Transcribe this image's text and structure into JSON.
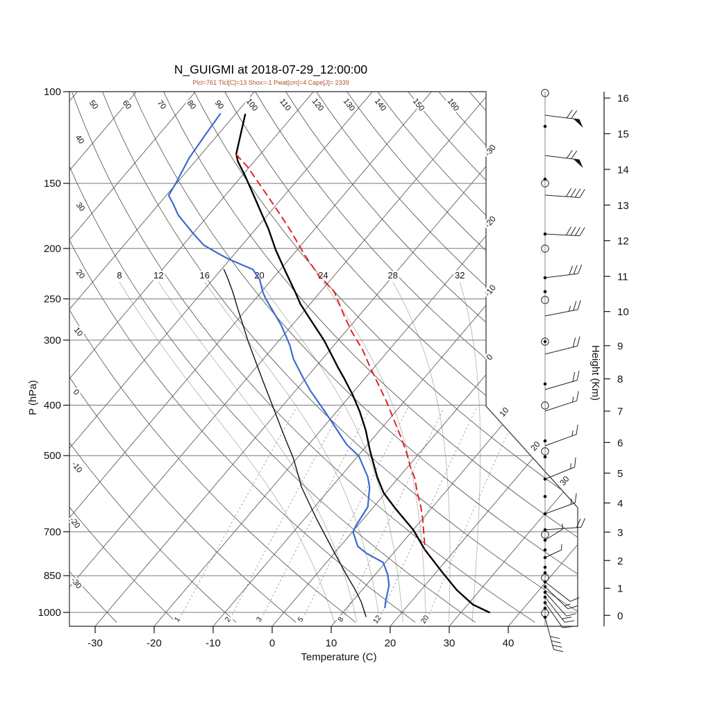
{
  "header": {
    "title": "N_GUIGMI at 2018-07-29_12:00:00",
    "subtitle": "Plcl=761 Tlcl[C]=13 Shox=-1 Pwat[cm]=4 Cape[J]= 2339"
  },
  "axes": {
    "pressure": {
      "title": "P (hPa)",
      "ticks": [
        100,
        150,
        200,
        250,
        300,
        400,
        500,
        700,
        850,
        1000
      ]
    },
    "temperature": {
      "title": "Temperature (C)",
      "ticks": [
        -30,
        -20,
        -10,
        0,
        10,
        20,
        30,
        40
      ]
    },
    "height": {
      "title": "Height (Km)",
      "ticks": [
        0,
        1,
        2,
        3,
        4,
        5,
        6,
        7,
        8,
        9,
        10,
        11,
        12,
        13,
        14,
        15,
        16
      ]
    }
  },
  "background_labels": {
    "dry_adiabats_top": [
      50,
      60,
      70,
      80,
      90,
      100,
      110,
      120,
      130,
      140,
      150,
      160
    ],
    "dry_adiabats_left": [
      40,
      30,
      20,
      10,
      0,
      -10,
      -20,
      -30
    ],
    "isotherm_edge": [
      -30,
      -20,
      -10,
      0,
      10,
      20,
      30
    ],
    "moist_adiabats": [
      8,
      12,
      16,
      20,
      24,
      28,
      32
    ],
    "mixing_ratio": [
      1,
      2,
      3,
      5,
      8,
      12,
      20
    ]
  },
  "colors": {
    "temperature": "#000000",
    "dewpoint": "#3c6ad2",
    "parcel": "#e32222",
    "aux": "#111111",
    "subtitle": "#a8552a",
    "grid_dark": "#4a4a4a",
    "grid_mid": "#787878",
    "grid_light": "#b7b7b7",
    "mixing": "#8a8a8a"
  },
  "chart_data": {
    "type": "line",
    "variant": "skew-t-log-p-sounding",
    "title": "N_GUIGMI at 2018-07-29_12:00:00",
    "xlabel": "Temperature (C)",
    "ylabel": "P (hPa)",
    "x_ticks": [
      -30,
      -20,
      -10,
      0,
      10,
      20,
      30,
      40
    ],
    "y_axis": {
      "scale": "log",
      "range": [
        100,
        1050
      ]
    },
    "series": [
      {
        "name": "temperature",
        "style": "solid",
        "points_p_t": [
          [
            110.6,
            -78.3
          ],
          [
            131.8,
            -74.1
          ],
          [
            136.3,
            -72.7
          ],
          [
            145,
            -69.5
          ],
          [
            157.5,
            -65.4
          ],
          [
            171.2,
            -61.3
          ],
          [
            183.7,
            -57.8
          ],
          [
            201.4,
            -53.6
          ],
          [
            220.4,
            -49.1
          ],
          [
            242.7,
            -44.2
          ],
          [
            255.9,
            -41.6
          ],
          [
            276.3,
            -37.2
          ],
          [
            300.3,
            -32.4
          ],
          [
            319.2,
            -29.2
          ],
          [
            338.7,
            -26.1
          ],
          [
            355.4,
            -23.5
          ],
          [
            381.4,
            -19.8
          ],
          [
            411.4,
            -16.1
          ],
          [
            446.7,
            -12.4
          ],
          [
            490.5,
            -8.6
          ],
          [
            549.5,
            -3.7
          ],
          [
            589.8,
            -0.3
          ],
          [
            631.6,
            3.9
          ],
          [
            694,
            10.0
          ],
          [
            758.6,
            14.9
          ],
          [
            839.5,
            21.2
          ],
          [
            906.4,
            26.1
          ],
          [
            966.1,
            30.9
          ],
          [
            1000,
            34.8
          ]
        ]
      },
      {
        "name": "dewpoint",
        "style": "solid",
        "points_p_t": [
          [
            110.3,
            -82.6
          ],
          [
            121.3,
            -82.1
          ],
          [
            134.2,
            -81.5
          ],
          [
            150.4,
            -80.1
          ],
          [
            158.2,
            -79.6
          ],
          [
            164.9,
            -77.4
          ],
          [
            172.4,
            -75.2
          ],
          [
            186.5,
            -70.2
          ],
          [
            197.1,
            -66.5
          ],
          [
            205.8,
            -62.2
          ],
          [
            209.6,
            -60.3
          ],
          [
            216.1,
            -56.6
          ],
          [
            219.4,
            -54.7
          ],
          [
            229.8,
            -52.0
          ],
          [
            242.7,
            -49.7
          ],
          [
            249.7,
            -48.3
          ],
          [
            280.5,
            -41.9
          ],
          [
            306.8,
            -37.5
          ],
          [
            326.1,
            -34.9
          ],
          [
            355.4,
            -30.4
          ],
          [
            375.6,
            -27.4
          ],
          [
            411.4,
            -22.0
          ],
          [
            444.6,
            -17.5
          ],
          [
            475.7,
            -13.6
          ],
          [
            501.2,
            -9.8
          ],
          [
            549.5,
            -5.3
          ],
          [
            575.4,
            -3.5
          ],
          [
            627.2,
            -1.0
          ],
          [
            681.3,
            -0.3
          ],
          [
            700.4,
            0.1
          ],
          [
            746.8,
            3.0
          ],
          [
            770.4,
            5.5
          ],
          [
            801.7,
            9.6
          ],
          [
            845.3,
            12.1
          ],
          [
            887.2,
            13.9
          ],
          [
            912.7,
            14.6
          ],
          [
            955,
            15.7
          ],
          [
            978.7,
            16.4
          ]
        ]
      },
      {
        "name": "parcel",
        "style": "dashed",
        "points_p_t": [
          [
            132.1,
            -74.0
          ],
          [
            139.3,
            -70.4
          ],
          [
            154.2,
            -64.4
          ],
          [
            169.1,
            -59.0
          ],
          [
            185.4,
            -53.7
          ],
          [
            205.8,
            -48.0
          ],
          [
            225.6,
            -42.6
          ],
          [
            242.1,
            -37.7
          ],
          [
            267.9,
            -32.8
          ],
          [
            289.3,
            -28.9
          ],
          [
            312.5,
            -24.6
          ],
          [
            336.3,
            -21.0
          ],
          [
            363.1,
            -17.1
          ],
          [
            392.0,
            -13.2
          ],
          [
            423.3,
            -9.5
          ],
          [
            457.1,
            -5.8
          ],
          [
            490.5,
            -2.5
          ],
          [
            524.8,
            0.4
          ],
          [
            553.3,
            2.9
          ],
          [
            589.8,
            5.4
          ],
          [
            627.2,
            8.0
          ],
          [
            660.7,
            10.0
          ],
          [
            756.2,
            14.8
          ]
        ]
      },
      {
        "name": "wet-bulb-aux",
        "style": "solid",
        "points_p_t": [
          [
            219.4,
            -59.6
          ],
          [
            225.6,
            -58.2
          ],
          [
            242.1,
            -54.9
          ],
          [
            261.5,
            -51.5
          ],
          [
            301.7,
            -45.1
          ],
          [
            357.1,
            -37.2
          ],
          [
            399.3,
            -31.9
          ],
          [
            457.1,
            -25.5
          ],
          [
            507,
            -20.5
          ],
          [
            575.4,
            -15.0
          ],
          [
            660.7,
            -8.0
          ],
          [
            758.6,
            -0.7
          ],
          [
            839.5,
            4.7
          ],
          [
            906.4,
            8.9
          ],
          [
            955,
            11.6
          ],
          [
            1018.6,
            14.5
          ]
        ]
      }
    ],
    "wind_barbs": [
      {
        "y": 134,
        "marker": "circle"
      },
      {
        "y": 166,
        "barb": {
          "angle": -7,
          "flags": 1,
          "full": 2,
          "half": 0,
          "len": 50
        }
      },
      {
        "y": 182,
        "marker": "dot"
      },
      {
        "y": 224,
        "barb": {
          "angle": -7,
          "flags": 1,
          "full": 2,
          "half": 0,
          "len": 50
        }
      },
      {
        "y": 258,
        "marker": "dot"
      },
      {
        "y": 264,
        "marker": "circle"
      },
      {
        "y": 281,
        "barb": {
          "angle": -4,
          "flags": 0,
          "full": 4,
          "half": 0,
          "len": 50
        }
      },
      {
        "y": 337,
        "marker": "dot",
        "barb": {
          "angle": -3,
          "flags": 0,
          "full": 4,
          "half": 0,
          "len": 50
        }
      },
      {
        "y": 358,
        "marker": "circle"
      },
      {
        "y": 400,
        "marker": "dot",
        "barb": {
          "angle": 7,
          "flags": 0,
          "full": 3,
          "half": 0,
          "len": 48
        }
      },
      {
        "y": 420,
        "marker": "dot"
      },
      {
        "y": 432,
        "marker": "circle"
      },
      {
        "y": 455,
        "barb": {
          "angle": 11,
          "flags": 0,
          "full": 2,
          "half": 1,
          "len": 48
        }
      },
      {
        "y": 492,
        "marker": "circle-dot"
      },
      {
        "y": 510,
        "barb": {
          "angle": 14,
          "flags": 0,
          "full": 2,
          "half": 0,
          "len": 48
        }
      },
      {
        "y": 553,
        "marker": "dot"
      },
      {
        "y": 561,
        "barb": {
          "angle": 16,
          "flags": 0,
          "full": 2,
          "half": 0,
          "len": 48
        }
      },
      {
        "y": 584,
        "marker": "circle"
      },
      {
        "y": 592,
        "barb": {
          "angle": 18,
          "flags": 0,
          "full": 1,
          "half": 1,
          "len": 48
        }
      },
      {
        "y": 635,
        "marker": "dot"
      },
      {
        "y": 642,
        "barb": {
          "angle": 20,
          "flags": 0,
          "full": 1,
          "half": 1,
          "len": 48
        }
      },
      {
        "y": 650,
        "marker": "circle"
      },
      {
        "y": 658,
        "marker": "dot"
      },
      {
        "y": 690,
        "marker": "dot",
        "barb": {
          "angle": 22,
          "flags": 0,
          "full": 1,
          "half": 1,
          "len": 46
        }
      },
      {
        "y": 715,
        "marker": "dot"
      },
      {
        "y": 740,
        "marker": "dot",
        "barb": {
          "angle": 20,
          "flags": 0,
          "full": 1,
          "half": 1,
          "len": 46
        }
      },
      {
        "y": 763,
        "marker": "dot",
        "barb": {
          "angle": 4,
          "flags": 0,
          "full": 2,
          "half": 0,
          "len": 52
        }
      },
      {
        "y": 770,
        "marker": "circle"
      },
      {
        "y": 778,
        "marker": "dot",
        "barb": {
          "angle": 32,
          "flags": 0,
          "full": 0,
          "half": 1,
          "len": 30
        }
      },
      {
        "y": 792,
        "marker": "dot"
      },
      {
        "y": 803,
        "marker": "dot",
        "barb": {
          "angle": 25,
          "flags": 0,
          "full": 0,
          "half": 1,
          "len": 26
        }
      },
      {
        "y": 817,
        "marker": "dot"
      },
      {
        "y": 825,
        "marker": "dot"
      },
      {
        "y": 832,
        "marker": "circle"
      },
      {
        "y": 838,
        "marker": "dot",
        "barb": {
          "angle": -38,
          "flags": 0,
          "full": 1,
          "half": 0,
          "len": 46
        }
      },
      {
        "y": 845,
        "marker": "dot",
        "barb": {
          "angle": -44,
          "flags": 0,
          "full": 1,
          "half": 1,
          "len": 46
        }
      },
      {
        "y": 853,
        "marker": "dot",
        "barb": {
          "angle": -48,
          "flags": 0,
          "full": 1,
          "half": 0,
          "len": 46
        }
      },
      {
        "y": 860,
        "marker": "dot",
        "barb": {
          "angle": -52,
          "flags": 0,
          "full": 2,
          "half": 0,
          "len": 46
        }
      },
      {
        "y": 868,
        "marker": "dot",
        "barb": {
          "angle": -55,
          "flags": 0,
          "full": 1,
          "half": 0,
          "len": 44
        }
      },
      {
        "y": 876,
        "marker": "dot"
      },
      {
        "y": 883,
        "marker": "circle"
      },
      {
        "y": 889,
        "marker": "dot",
        "barb": {
          "angle": -75,
          "flags": 0,
          "full": 4,
          "half": 0,
          "len": 48
        }
      }
    ]
  }
}
